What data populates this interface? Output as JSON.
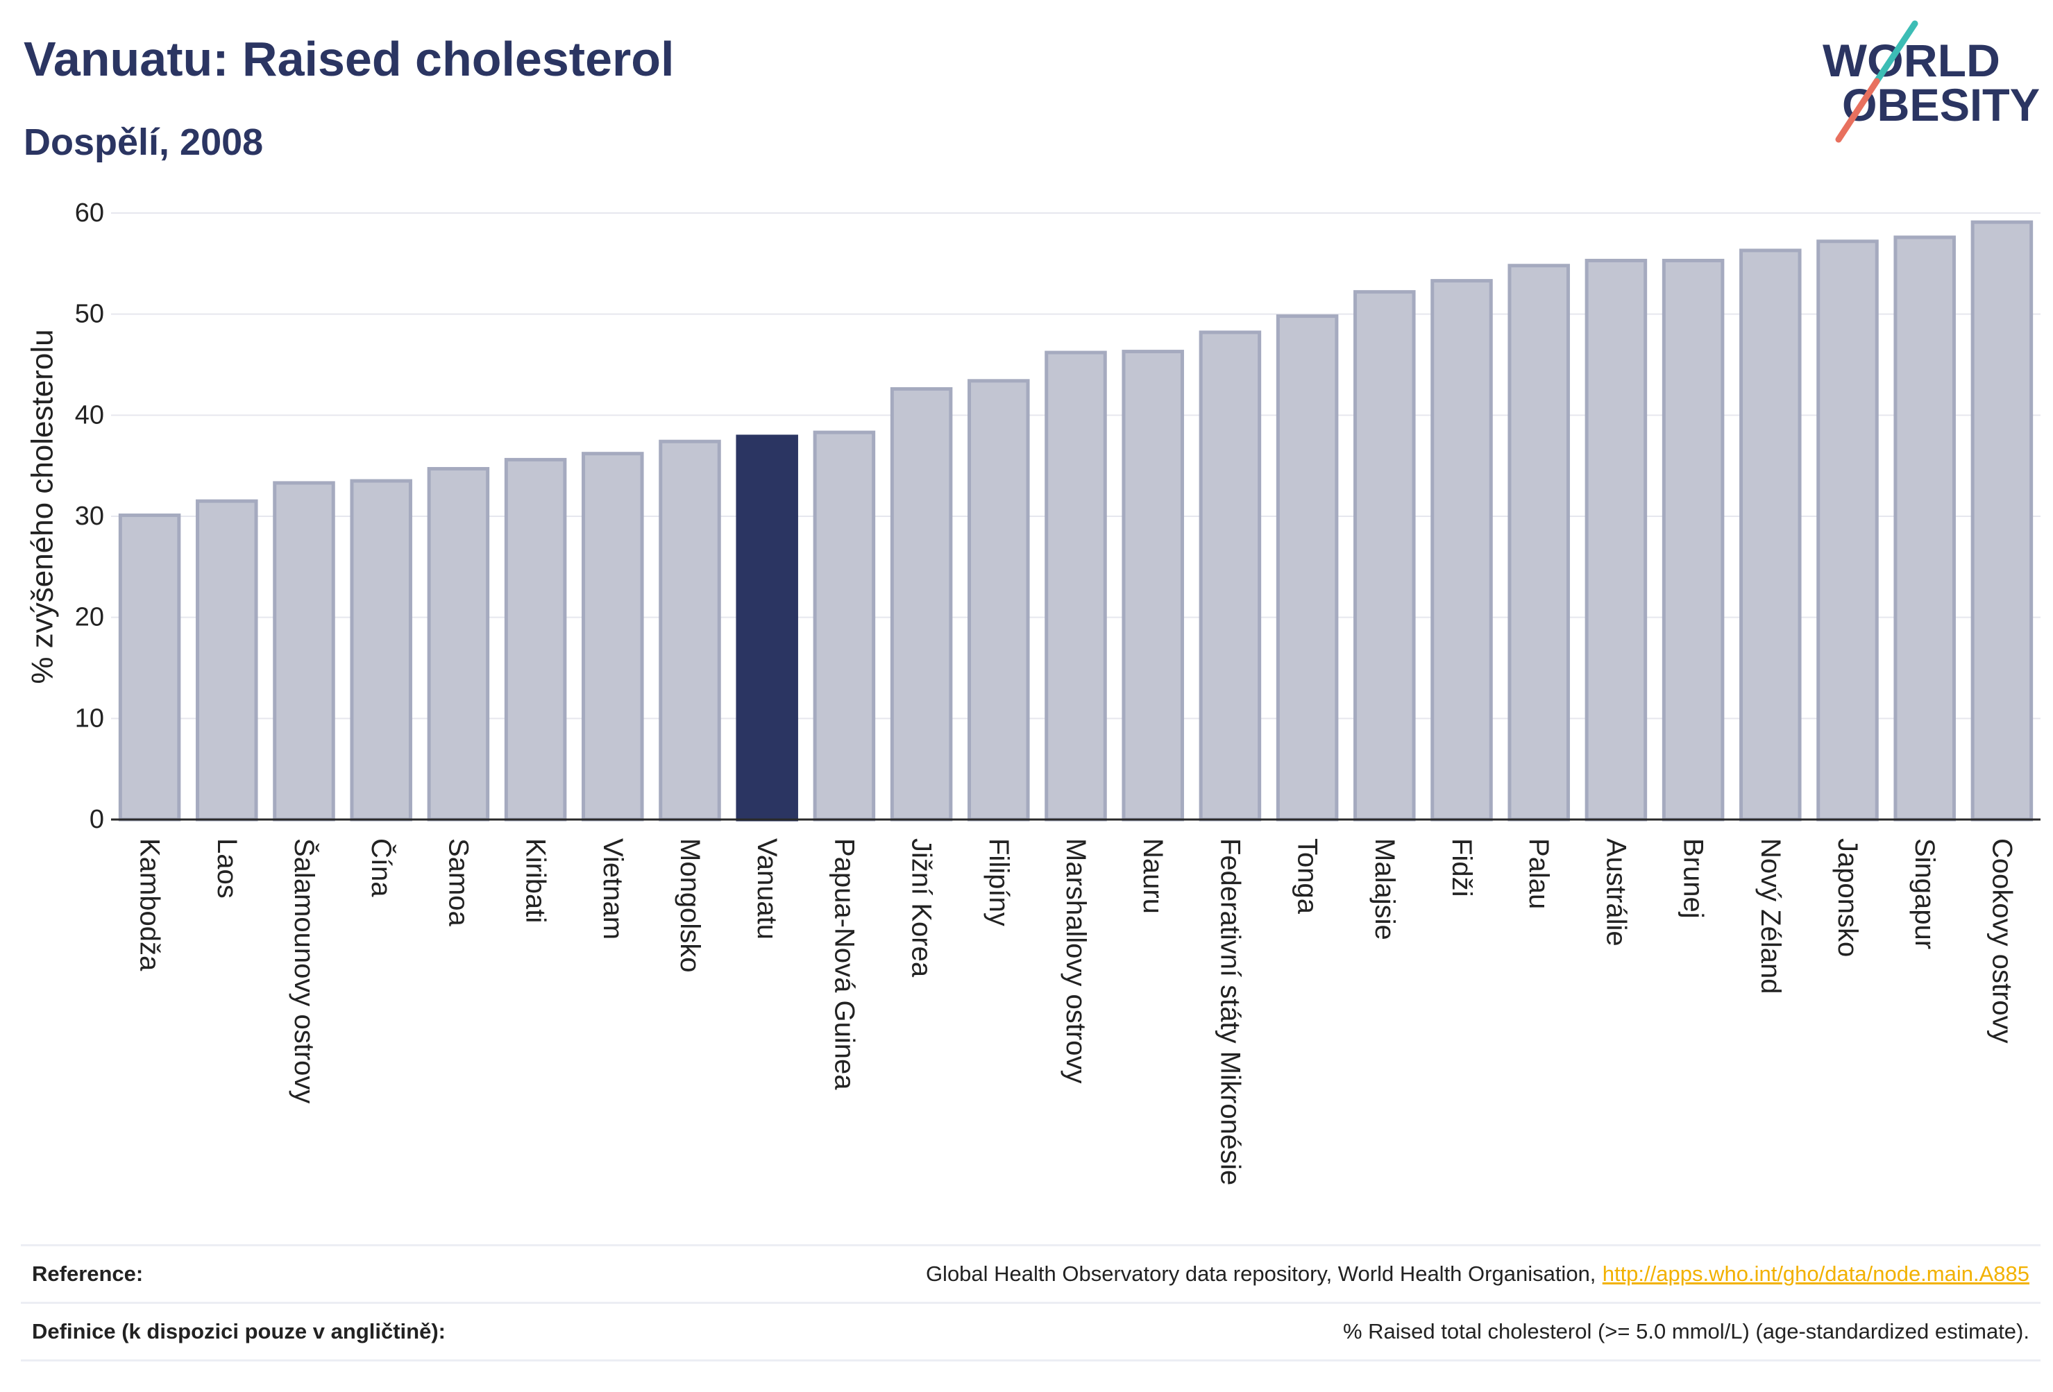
{
  "logo": {
    "line1": "WORLD",
    "line2": "OBESITY"
  },
  "colors": {
    "title": "#2b3562",
    "bar_fill": "#c2c5d2",
    "bar_stroke": "#a5aabf",
    "highlight": "#2b3562",
    "grid": "#e6e7ee",
    "zero_line": "#2a2a2a",
    "link": "#f2b100",
    "logo_teal": "#3cbdb5",
    "logo_coral": "#e8705e"
  },
  "chart_data": {
    "type": "bar",
    "title": "Vanuatu: Raised cholesterol",
    "subtitle": "Dospělí, 2008",
    "ylabel": "% zvýšeného cholesterolu",
    "ylim": [
      0,
      60
    ],
    "yticks": [
      0,
      10,
      20,
      30,
      40,
      50,
      60
    ],
    "grid": true,
    "highlight_index": 8,
    "categories": [
      "Kambodža",
      "Laos",
      "Šalamounovy ostrovy",
      "Čína",
      "Samoa",
      "Kiribati",
      "Vietnam",
      "Mongolsko",
      "Vanuatu",
      "Papua-Nová Guinea",
      "Jižní Korea",
      "Filipíny",
      "Marshallovy ostrovy",
      "Nauru",
      "Federativní státy Mikronésie",
      "Tonga",
      "Malajsie",
      "Fidži",
      "Palau",
      "Austrálie",
      "Brunej",
      "Nový Zéland",
      "Japonsko",
      "Singapur",
      "Cookovy ostrovy"
    ],
    "values": [
      30.1,
      31.5,
      33.3,
      33.5,
      34.7,
      35.6,
      36.2,
      37.4,
      37.9,
      38.3,
      42.6,
      43.4,
      46.2,
      46.3,
      48.2,
      49.8,
      52.2,
      53.3,
      54.8,
      55.3,
      55.3,
      56.3,
      57.2,
      57.6,
      59.1
    ]
  },
  "footer": {
    "reference_label": "Reference:",
    "reference_text": "Global Health Observatory data repository, World Health Organisation,",
    "reference_link": "http://apps.who.int/gho/data/node.main.A885",
    "definition_label": "Definice (k dispozici pouze v angličtině):",
    "definition_text": "% Raised total cholesterol (>= 5.0 mmol/L) (age-standardized estimate)."
  }
}
